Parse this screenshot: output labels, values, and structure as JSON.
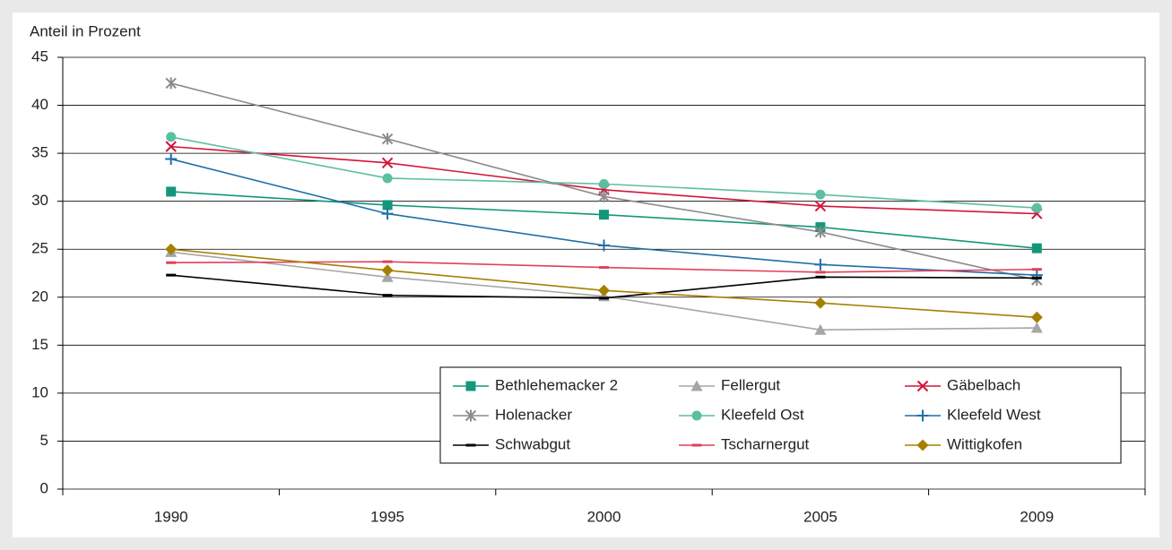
{
  "chart_data": {
    "type": "line",
    "y_axis_label": "Anteil in Prozent",
    "categories": [
      "1990",
      "1995",
      "2000",
      "2005",
      "2009"
    ],
    "ylim": [
      0,
      45
    ],
    "yticks": [
      0,
      5,
      10,
      15,
      20,
      25,
      30,
      35,
      40,
      45
    ],
    "grid": true,
    "legend": "lower right",
    "series": [
      {
        "name": "Bethlehemacker 2",
        "color": "#13977a",
        "marker": "square",
        "values": [
          31.0,
          29.6,
          28.6,
          27.3,
          25.1
        ]
      },
      {
        "name": "Fellergut",
        "color": "#a6a6a6",
        "marker": "triangle",
        "values": [
          24.7,
          22.1,
          20.1,
          16.6,
          16.8
        ]
      },
      {
        "name": "Gäbelbach",
        "color": "#d3143c",
        "marker": "x",
        "values": [
          35.7,
          34.0,
          31.2,
          29.5,
          28.7
        ]
      },
      {
        "name": "Holenacker",
        "color": "#8c8c8c",
        "marker": "asterisk",
        "values": [
          42.3,
          36.5,
          30.5,
          26.8,
          21.8
        ]
      },
      {
        "name": "Kleefeld Ost",
        "color": "#5cbfa0",
        "marker": "circle",
        "values": [
          36.7,
          32.4,
          31.8,
          30.7,
          29.3
        ]
      },
      {
        "name": "Kleefeld West",
        "color": "#1f6fa8",
        "marker": "plus",
        "values": [
          34.4,
          28.7,
          25.4,
          23.4,
          22.3
        ]
      },
      {
        "name": "Schwabgut",
        "color": "#000000",
        "marker": "dash",
        "values": [
          22.3,
          20.2,
          19.9,
          22.1,
          22.0
        ]
      },
      {
        "name": "Tscharnergut",
        "color": "#e0405a",
        "marker": "dash",
        "values": [
          23.6,
          23.7,
          23.1,
          22.6,
          22.9
        ]
      },
      {
        "name": "Wittigkofen",
        "color": "#a48000",
        "marker": "diamond",
        "values": [
          25.0,
          22.8,
          20.7,
          19.4,
          17.9
        ]
      }
    ]
  }
}
